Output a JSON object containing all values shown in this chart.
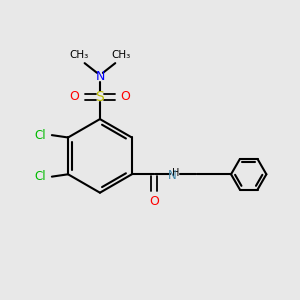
{
  "background_color": "#e8e8e8",
  "bond_color": "#000000",
  "cl_color": "#00bb00",
  "n_color": "#0000ff",
  "o_color": "#ff0000",
  "s_color": "#bbbb00",
  "nh_color": "#4488aa",
  "figsize": [
    3.0,
    3.0
  ],
  "dpi": 100,
  "xlim": [
    0,
    10
  ],
  "ylim": [
    0,
    10
  ]
}
